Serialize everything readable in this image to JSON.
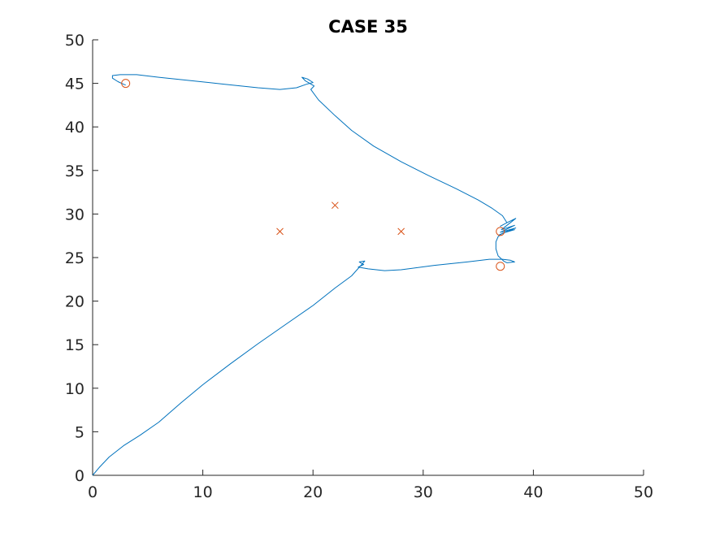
{
  "chart_data": {
    "type": "line",
    "title": "CASE 35",
    "xlabel": "",
    "ylabel": "",
    "xlim": [
      0,
      50
    ],
    "ylim": [
      0,
      50
    ],
    "xticks": [
      0,
      10,
      20,
      30,
      40,
      50
    ],
    "yticks": [
      0,
      5,
      10,
      15,
      20,
      25,
      30,
      35,
      40,
      45,
      50
    ],
    "grid": false,
    "legend": "none",
    "colors": {
      "path": "#0072bd",
      "markers": "#d95319",
      "axis": "#262626"
    },
    "series": [
      {
        "type": "line",
        "points": [
          [
            0,
            0
          ],
          [
            0.6,
            0.9
          ],
          [
            1.5,
            2.1
          ],
          [
            2.8,
            3.4
          ],
          [
            4.3,
            4.6
          ],
          [
            6,
            6.1
          ],
          [
            8,
            8.3
          ],
          [
            10,
            10.4
          ],
          [
            12.5,
            12.8
          ],
          [
            15,
            15.1
          ],
          [
            17.5,
            17.3
          ],
          [
            20,
            19.5
          ],
          [
            22,
            21.5
          ],
          [
            23.5,
            22.9
          ],
          [
            24.7,
            24.6
          ],
          [
            24.2,
            24.5
          ],
          [
            24.6,
            24.2
          ],
          [
            24.1,
            23.9
          ],
          [
            25,
            23.7
          ],
          [
            26.5,
            23.5
          ],
          [
            28,
            23.6
          ],
          [
            31,
            24.1
          ],
          [
            34,
            24.5
          ],
          [
            36,
            24.8
          ],
          [
            37.2,
            24.8
          ],
          [
            37.9,
            24.7
          ],
          [
            38.3,
            24.5
          ],
          [
            37.6,
            24.4
          ],
          [
            37.3,
            24.6
          ],
          [
            36.8,
            25.2
          ],
          [
            36.6,
            26
          ],
          [
            36.6,
            26.8
          ],
          [
            36.8,
            27.4
          ],
          [
            37.2,
            27.8
          ],
          [
            38.3,
            28.2
          ],
          [
            37.6,
            28
          ],
          [
            36.9,
            27.6
          ],
          [
            38.4,
            28.4
          ],
          [
            37,
            27.9
          ],
          [
            38.3,
            28.7
          ],
          [
            37.1,
            28.2
          ],
          [
            38.4,
            29.5
          ],
          [
            37.6,
            29
          ],
          [
            37,
            28.6
          ],
          [
            37.6,
            29
          ],
          [
            37.2,
            29.8
          ],
          [
            36.2,
            30.7
          ],
          [
            35,
            31.6
          ],
          [
            33,
            32.9
          ],
          [
            30.5,
            34.4
          ],
          [
            28,
            36
          ],
          [
            25.5,
            37.8
          ],
          [
            23.5,
            39.6
          ],
          [
            22,
            41.3
          ],
          [
            20.5,
            43.1
          ],
          [
            19.8,
            44.3
          ],
          [
            20.1,
            44.7
          ],
          [
            19.3,
            45.3
          ],
          [
            19,
            45.7
          ],
          [
            19.5,
            45.5
          ],
          [
            20,
            45.1
          ],
          [
            19.4,
            44.9
          ],
          [
            18.5,
            44.5
          ],
          [
            17,
            44.3
          ],
          [
            15,
            44.5
          ],
          [
            12,
            44.9
          ],
          [
            9,
            45.3
          ],
          [
            6,
            45.7
          ],
          [
            4,
            46
          ],
          [
            2.5,
            46
          ],
          [
            1.8,
            45.9
          ],
          [
            1.8,
            45.6
          ],
          [
            2.3,
            45.2
          ],
          [
            2.8,
            44.9
          ],
          [
            3,
            44.8
          ]
        ]
      },
      {
        "type": "scatter",
        "marker": "o",
        "points": [
          [
            3,
            45
          ],
          [
            37,
            24
          ],
          [
            37,
            28
          ]
        ]
      },
      {
        "type": "scatter",
        "marker": "x",
        "points": [
          [
            17,
            28
          ],
          [
            22,
            31
          ],
          [
            28,
            28
          ]
        ]
      }
    ]
  }
}
